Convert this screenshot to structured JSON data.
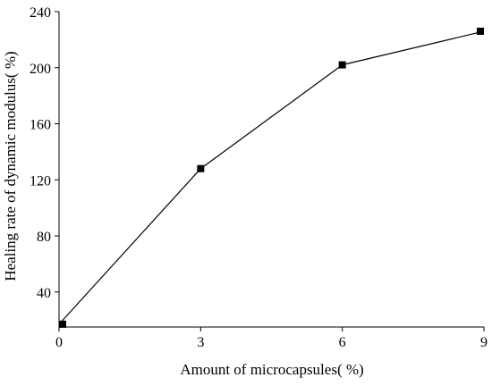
{
  "chart_data": {
    "type": "line",
    "title": "",
    "xlabel": "Amount of microcapsules(   %)",
    "ylabel": "Healing rate of dynamic modulus(   %)",
    "x_ticks": [
      0,
      3,
      6,
      9
    ],
    "y_ticks": [
      40,
      80,
      120,
      160,
      200,
      240
    ],
    "xlim": [
      0,
      9
    ],
    "ylim": [
      15,
      240
    ],
    "grid": false,
    "series": [
      {
        "x": [
          0,
          3,
          6,
          9
        ],
        "y": [
          17,
          128,
          202,
          226
        ],
        "color": "#000000",
        "marker": "square"
      }
    ]
  }
}
